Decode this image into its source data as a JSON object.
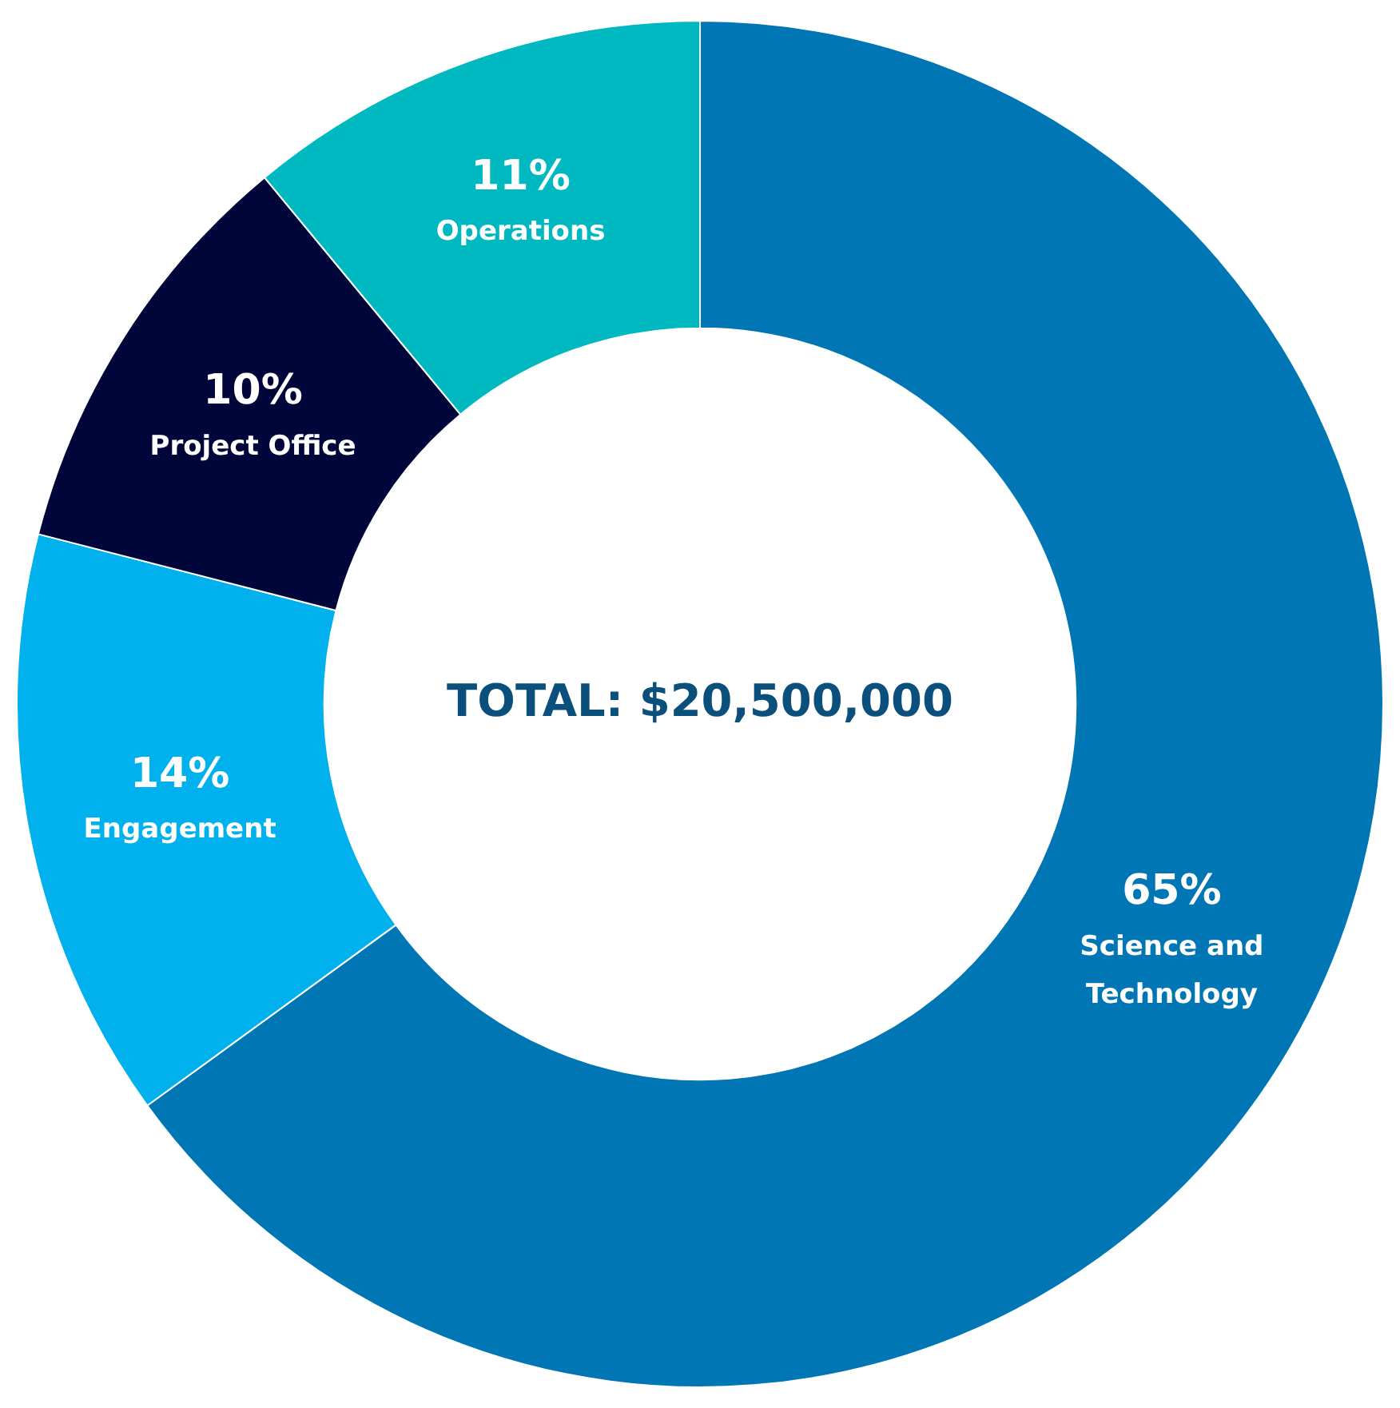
{
  "chart_data": {
    "type": "donut",
    "title": "TOTAL: $20,500,000",
    "categories": [
      "Science and Technology",
      "Engagement",
      "Project Office",
      "Operations"
    ],
    "values": [
      65,
      14,
      10,
      11
    ],
    "colors": [
      "#0176b5",
      "#00b1ee",
      "#00053a",
      "#00b8bf"
    ],
    "value_labels": [
      "65%",
      "14%",
      "10%",
      "11%"
    ],
    "legend": false
  }
}
